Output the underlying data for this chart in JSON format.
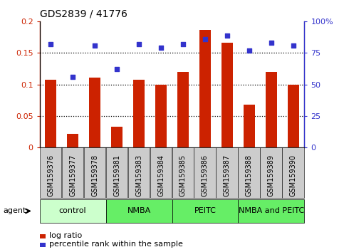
{
  "title": "GDS2839 / 41776",
  "categories": [
    "GSM159376",
    "GSM159377",
    "GSM159378",
    "GSM159381",
    "GSM159383",
    "GSM159384",
    "GSM159385",
    "GSM159386",
    "GSM159387",
    "GSM159388",
    "GSM159389",
    "GSM159390"
  ],
  "log_ratio": [
    0.108,
    0.022,
    0.111,
    0.033,
    0.108,
    0.099,
    0.12,
    0.187,
    0.166,
    0.068,
    0.12,
    0.1
  ],
  "percentile_rank": [
    82,
    56,
    81,
    62,
    82,
    79,
    82,
    86,
    89,
    77,
    83,
    81
  ],
  "bar_color": "#cc2200",
  "dot_color": "#3333cc",
  "ylim_left": [
    0,
    0.2
  ],
  "ylim_right": [
    0,
    100
  ],
  "yticks_left": [
    0,
    0.05,
    0.1,
    0.15,
    0.2
  ],
  "ytick_labels_left": [
    "0",
    "0.05",
    "0.1",
    "0.15",
    "0.2"
  ],
  "yticks_right": [
    0,
    25,
    50,
    75,
    100
  ],
  "ytick_labels_right": [
    "0",
    "25",
    "50",
    "75",
    "100%"
  ],
  "groups": [
    {
      "label": "control",
      "start": 0,
      "end": 3,
      "color": "#ccffcc"
    },
    {
      "label": "NMBA",
      "start": 3,
      "end": 6,
      "color": "#66ee66"
    },
    {
      "label": "PEITC",
      "start": 6,
      "end": 9,
      "color": "#66ee66"
    },
    {
      "label": "NMBA and PEITC",
      "start": 9,
      "end": 12,
      "color": "#66ee66"
    }
  ],
  "agent_label": "agent",
  "legend_bar_label": "log ratio",
  "legend_dot_label": "percentile rank within the sample",
  "tick_label_color_left": "#cc2200",
  "tick_label_color_right": "#3333cc",
  "xtick_bg_color": "#cccccc",
  "plot_bg_color": "#ffffff",
  "title_fontsize": 10,
  "axis_fontsize": 8,
  "xtick_fontsize": 7,
  "legend_fontsize": 8,
  "group_fontsize": 8,
  "bar_width": 0.5
}
